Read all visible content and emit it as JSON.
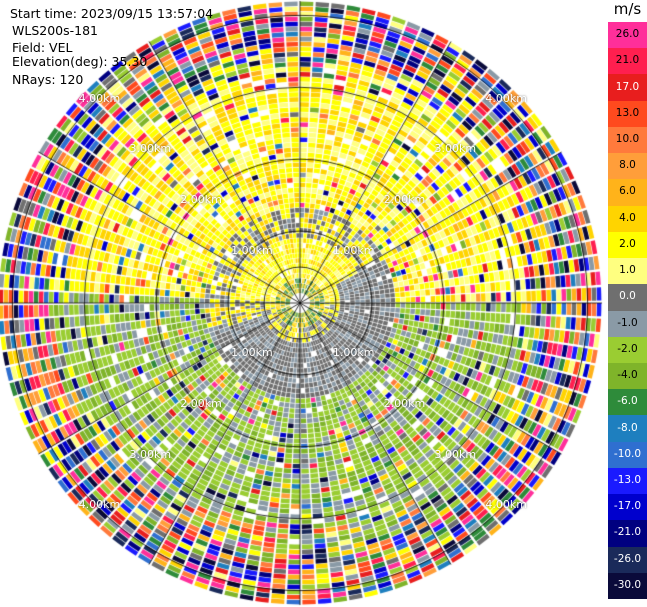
{
  "info": {
    "start_time": "Start time: 2023/09/15 13:57:04",
    "site": "WLS200s-181",
    "field": "Field: VEL",
    "elevation": "Elevation(deg): 35.30",
    "nrays": "NRays: 120"
  },
  "rings": [
    {
      "label": "1.00km",
      "km": 1
    },
    {
      "label": "2.00km",
      "km": 2
    },
    {
      "label": "3.00km",
      "km": 3
    },
    {
      "label": "4.00km",
      "km": 4
    }
  ],
  "colorbar": {
    "unit": "m/s",
    "ticks": [
      "26.0",
      "21.0",
      "17.0",
      "13.0",
      "10.0",
      "8.0",
      "6.0",
      "4.0",
      "2.0",
      "1.0",
      "0.0",
      "-1.0",
      "-2.0",
      "-4.0",
      "-6.0",
      "-8.0",
      "-10.0",
      "-13.0",
      "-17.0",
      "-21.0",
      "-26.0",
      "-30.0"
    ],
    "colors": [
      "#ff2f9a",
      "#ff1f4f",
      "#e81e1e",
      "#ff4a1e",
      "#ff7a3c",
      "#ff9e3a",
      "#ffb31a",
      "#ffd400",
      "#ffff00",
      "#ffff80",
      "#6f6f6f",
      "#8a9aa6",
      "#9acd32",
      "#7fb42a",
      "#2e8b3a",
      "#1e7fbf",
      "#2f6fd0",
      "#1a1aff",
      "#0000cd",
      "#000080",
      "#1a2a5a",
      "#0a0a3a"
    ]
  },
  "ppi": {
    "nrays": 120,
    "max_range_km": 4.2
  }
}
